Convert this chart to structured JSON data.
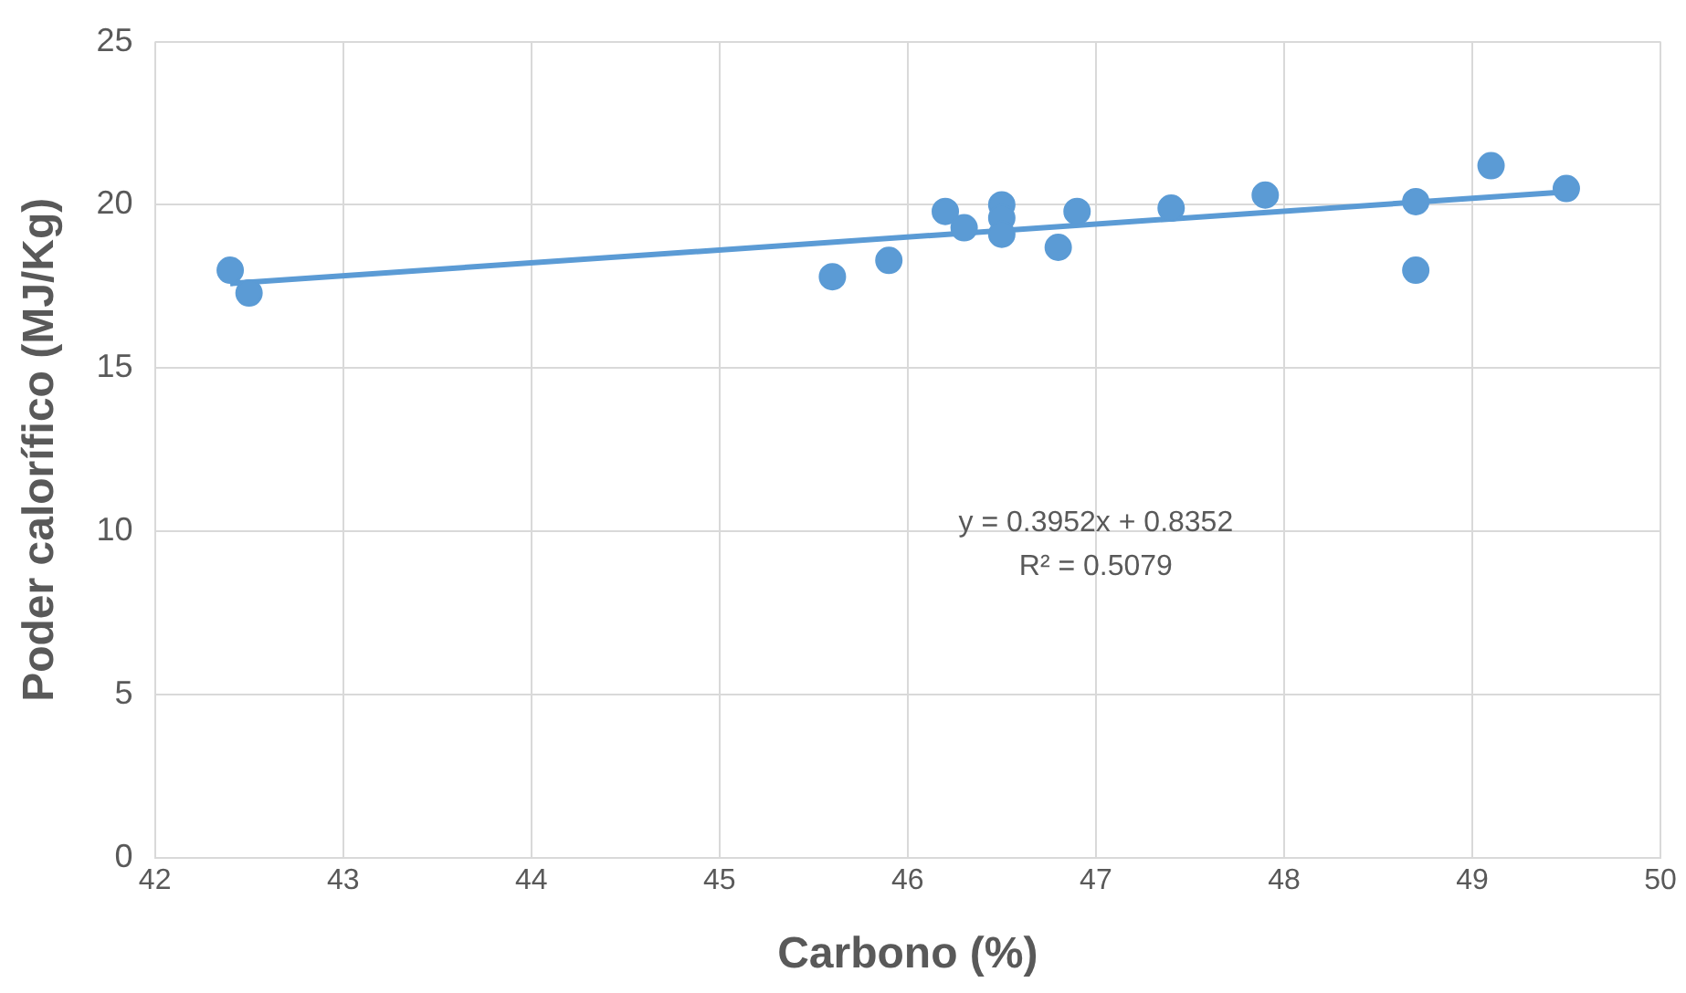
{
  "chart_data": {
    "type": "scatter",
    "xlabel": "Carbono (%)",
    "ylabel": "Poder calorífico (MJ/Kg)",
    "xlim": [
      42,
      50
    ],
    "xticks": [
      42,
      43,
      44,
      45,
      46,
      47,
      48,
      49,
      50
    ],
    "ylim": [
      0,
      25
    ],
    "yticks": [
      0,
      5,
      10,
      15,
      20,
      25
    ],
    "grid": true,
    "legend": false,
    "series": [
      {
        "marker": "circle",
        "color": "#5b9bd5",
        "x": [
          42.4,
          42.5,
          45.6,
          45.9,
          46.2,
          46.3,
          46.5,
          46.5,
          46.5,
          46.8,
          46.9,
          47.4,
          47.9,
          48.7,
          48.7,
          49.1,
          49.5
        ],
        "values": [
          18.0,
          17.3,
          17.8,
          18.3,
          19.8,
          19.3,
          20.0,
          19.6,
          19.1,
          18.7,
          19.8,
          19.9,
          20.3,
          20.1,
          18.0,
          21.2,
          20.5
        ]
      },
      {
        "type": "line",
        "color": "#5b9bd5",
        "x": [
          42.4,
          49.5
        ],
        "values": [
          17.59,
          20.4
        ]
      }
    ],
    "annotations": [
      "y = 0.3952x + 0.8352",
      "R² = 0.5079"
    ]
  }
}
